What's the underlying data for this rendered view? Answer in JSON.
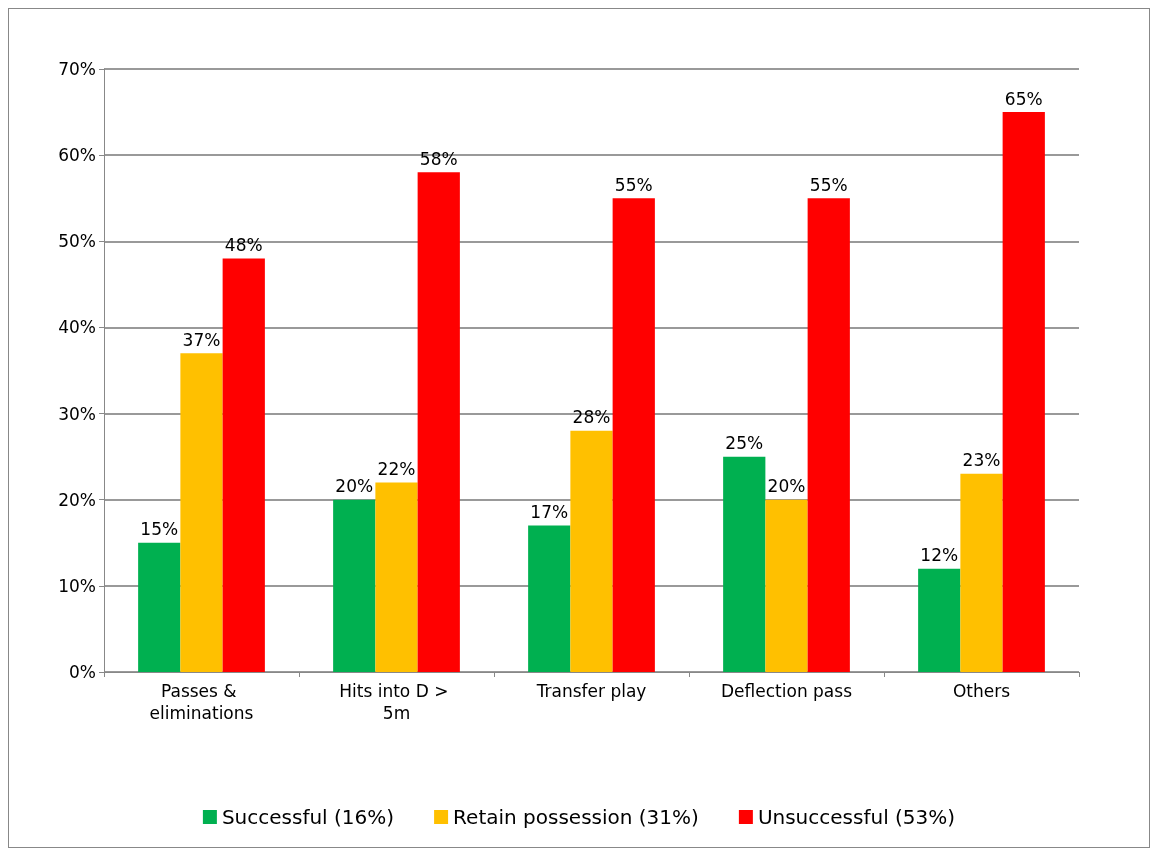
{
  "chart_data": {
    "type": "bar",
    "categories": [
      "Passes & eliminations",
      "Hits into D > 5m",
      "Transfer play",
      "Deflection pass",
      "Others"
    ],
    "series": [
      {
        "name": "Successful (16%)",
        "color": "#00b050",
        "values": [
          15,
          20,
          17,
          25,
          12
        ],
        "value_labels": [
          "15%",
          "20%",
          "17%",
          "25%",
          "12%"
        ]
      },
      {
        "name": "Retain possession (31%)",
        "color": "#ffc000",
        "values": [
          37,
          22,
          28,
          20,
          23
        ],
        "value_labels": [
          "37%",
          "22%",
          "28%",
          "20%",
          "23%"
        ]
      },
      {
        "name": "Unsuccessful (53%)",
        "color": "#ff0000",
        "values": [
          48,
          58,
          55,
          55,
          65
        ],
        "value_labels": [
          "48%",
          "58%",
          "55%",
          "55%",
          "65%"
        ]
      }
    ],
    "ylim": [
      0,
      70
    ],
    "yticks": [
      {
        "value": 0,
        "label": "0%"
      },
      {
        "value": 10,
        "label": "10%"
      },
      {
        "value": 20,
        "label": "20%"
      },
      {
        "value": 30,
        "label": "30%"
      },
      {
        "value": 40,
        "label": "40%"
      },
      {
        "value": 50,
        "label": "50%"
      },
      {
        "value": 60,
        "label": "60%"
      },
      {
        "value": 70,
        "label": "70%"
      }
    ],
    "grid": "y",
    "legend": "bottom"
  }
}
